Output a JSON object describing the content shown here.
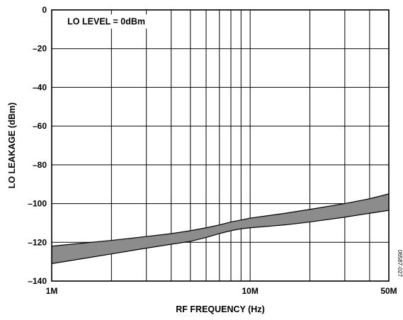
{
  "chart_data": {
    "type": "area",
    "title": "",
    "xlabel": "RF FREQUENCY (Hz)",
    "ylabel": "LO LEAKAGE (dBm)",
    "xscale": "log",
    "xlim": [
      1000000,
      50000000
    ],
    "ylim": [
      -140,
      0
    ],
    "x_ticks": [
      {
        "value": 1000000,
        "label": "1M"
      },
      {
        "value": 10000000,
        "label": "10M"
      },
      {
        "value": 50000000,
        "label": "50M"
      }
    ],
    "y_ticks": [
      {
        "value": 0,
        "label": "0"
      },
      {
        "value": -20,
        "label": "–20"
      },
      {
        "value": -40,
        "label": "–40"
      },
      {
        "value": -60,
        "label": "–60"
      },
      {
        "value": -80,
        "label": "–80"
      },
      {
        "value": -100,
        "label": "–100"
      },
      {
        "value": -120,
        "label": "–120"
      },
      {
        "value": -140,
        "label": "–140"
      }
    ],
    "x_grid": [
      1000000,
      2000000,
      3000000,
      4000000,
      5000000,
      6000000,
      7000000,
      8000000,
      9000000,
      10000000,
      20000000,
      30000000,
      40000000,
      50000000
    ],
    "y_grid": [
      0,
      -20,
      -40,
      -60,
      -80,
      -100,
      -120,
      -140
    ],
    "grid": true,
    "band_color": "#8c8c8c",
    "line_color": "#000000",
    "series": [
      {
        "role": "upper",
        "x": [
          1000000,
          2000000,
          3000000,
          4000000,
          5000000,
          6000000,
          7000000,
          8000000,
          9000000,
          10000000,
          15000000,
          20000000,
          30000000,
          40000000,
          50000000
        ],
        "values": [
          -122,
          -119,
          -117,
          -115.5,
          -114,
          -112.5,
          -111,
          -109.5,
          -108.5,
          -107.5,
          -105,
          -103,
          -100,
          -97.5,
          -95
        ]
      },
      {
        "role": "lower",
        "x": [
          1000000,
          2000000,
          3000000,
          4000000,
          5000000,
          6000000,
          7000000,
          8000000,
          9000000,
          10000000,
          15000000,
          20000000,
          30000000,
          40000000,
          50000000
        ],
        "values": [
          -131,
          -126,
          -123,
          -121,
          -119.5,
          -117.5,
          -115.5,
          -114,
          -113,
          -112.5,
          -111,
          -109.5,
          -107,
          -105,
          -103.5
        ]
      }
    ],
    "annotations": [
      {
        "text": "LO LEVEL = 0dBm",
        "x": 1200000,
        "y": -6
      }
    ],
    "figure_id": "06587-027"
  }
}
